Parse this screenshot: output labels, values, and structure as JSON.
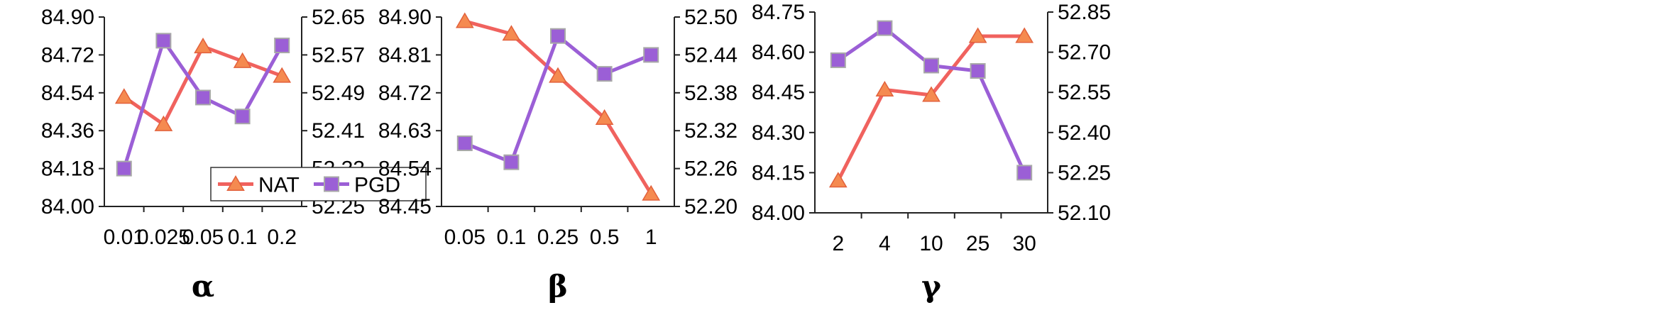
{
  "chart_data": [
    {
      "type": "line",
      "xlabel": "α",
      "categories": [
        "0.01",
        "0.025",
        "0.05",
        "0.1",
        "0.2"
      ],
      "y_left": {
        "ticks": [
          "84.00",
          "84.18",
          "84.36",
          "84.54",
          "84.72",
          "84.90"
        ],
        "lim": [
          84.0,
          84.9
        ]
      },
      "y_right": {
        "ticks": [
          "52.25",
          "52.33",
          "52.41",
          "52.49",
          "52.57",
          "52.65"
        ],
        "lim": [
          52.25,
          52.65
        ]
      },
      "series": [
        {
          "name": "NAT",
          "axis": "left",
          "color": "#f0625e",
          "marker": "triangle",
          "values": [
            84.52,
            84.39,
            84.76,
            84.69,
            84.62
          ]
        },
        {
          "name": "PGD",
          "axis": "right",
          "color": "#9b5fd6",
          "marker": "square",
          "values": [
            52.33,
            52.6,
            52.48,
            52.44,
            52.59
          ]
        }
      ],
      "legend": {
        "placement": "bottom-right",
        "show": true
      }
    },
    {
      "type": "line",
      "xlabel": "β",
      "categories": [
        "0.05",
        "0.1",
        "0.25",
        "0.5",
        "1"
      ],
      "y_left": {
        "ticks": [
          "84.45",
          "84.54",
          "84.63",
          "84.72",
          "84.81",
          "84.90"
        ],
        "lim": [
          84.45,
          84.9
        ]
      },
      "y_right": {
        "ticks": [
          "52.20",
          "52.26",
          "52.32",
          "52.38",
          "52.44",
          "52.50"
        ],
        "lim": [
          52.2,
          52.5
        ]
      },
      "series": [
        {
          "name": "NAT",
          "axis": "left",
          "color": "#f0625e",
          "marker": "triangle",
          "values": [
            84.89,
            84.86,
            84.76,
            84.66,
            84.48
          ]
        },
        {
          "name": "PGD",
          "axis": "right",
          "color": "#9b5fd6",
          "marker": "square",
          "values": [
            52.3,
            52.27,
            52.47,
            52.41,
            52.44
          ]
        }
      ],
      "legend": {
        "show": false
      }
    },
    {
      "type": "line",
      "xlabel": "γ",
      "categories": [
        "2",
        "4",
        "10",
        "25",
        "30"
      ],
      "y_left": {
        "ticks": [
          "84.00",
          "84.15",
          "84.30",
          "84.45",
          "84.60",
          "84.75"
        ],
        "lim": [
          84.0,
          84.75
        ]
      },
      "y_right": {
        "ticks": [
          "52.10",
          "52.25",
          "52.40",
          "52.55",
          "52.70",
          "52.85"
        ],
        "lim": [
          52.1,
          52.85
        ]
      },
      "series": [
        {
          "name": "NAT",
          "axis": "left",
          "color": "#f0625e",
          "marker": "triangle",
          "values": [
            84.12,
            84.46,
            84.44,
            84.66,
            84.66
          ]
        },
        {
          "name": "PGD",
          "axis": "right",
          "color": "#9b5fd6",
          "marker": "square",
          "values": [
            52.67,
            52.79,
            52.65,
            52.63,
            52.25
          ]
        }
      ],
      "legend": {
        "show": false
      }
    }
  ]
}
